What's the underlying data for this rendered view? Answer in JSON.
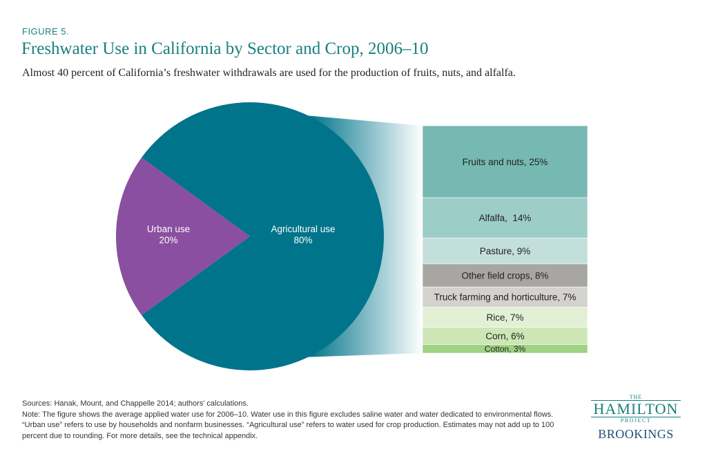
{
  "figure_label": "FIGURE 5.",
  "title": "Freshwater Use in California by Sector and Crop, 2006–10",
  "subtitle": "Almost 40 percent of California’s freshwater withdrawals are used for the production of fruits, nuts, and alfalfa.",
  "chart_data": [
    {
      "type": "pie",
      "slices": [
        {
          "label": "Agricultural use",
          "value": 80,
          "value_label": "80%",
          "color": "#00748a"
        },
        {
          "label": "Urban use",
          "value": 20,
          "value_label": "20%",
          "color": "#8a4fa0"
        }
      ]
    },
    {
      "type": "bar",
      "stacked": true,
      "breakdown_of": "Agricultural use",
      "segments": [
        {
          "label": "Fruits and nuts, 25%",
          "value": 25,
          "color": "#76b9b2"
        },
        {
          "label": "Alfalfa,  14%",
          "value": 14,
          "color": "#9dcdc7"
        },
        {
          "label": "Pasture, 9%",
          "value": 9,
          "color": "#c3dfdb"
        },
        {
          "label": "Other field crops, 8%",
          "value": 8,
          "color": "#a8a6a3"
        },
        {
          "label": "Truck farming and horticulture, 7%",
          "value": 7,
          "color": "#d3d2cf"
        },
        {
          "label": "Rice, 7%",
          "value": 7,
          "color": "#e3f0d5"
        },
        {
          "label": "Corn, 6%",
          "value": 6,
          "color": "#cde6b6"
        },
        {
          "label": "Cotton, 3%",
          "value": 3,
          "color": "#9fd283"
        }
      ]
    }
  ],
  "sources": "Sources: Hanak, Mount, and Chappelle 2014; authors’ calculations.",
  "note": "Note: The figure shows the average applied water use for 2006–10. Water use in this figure excludes saline water and water dedicated to environmental flows. “Urban use” refers to use by households and nonfarm businesses. “Agricultural use” refers to water used for crop production. Estimates may not add up to 100 percent due to rounding. For more details, see the technical appendix.",
  "logo": {
    "the": "THE",
    "hamilton": "HAMILTON",
    "project": "PROJECT",
    "brookings": "BROOKINGS"
  }
}
